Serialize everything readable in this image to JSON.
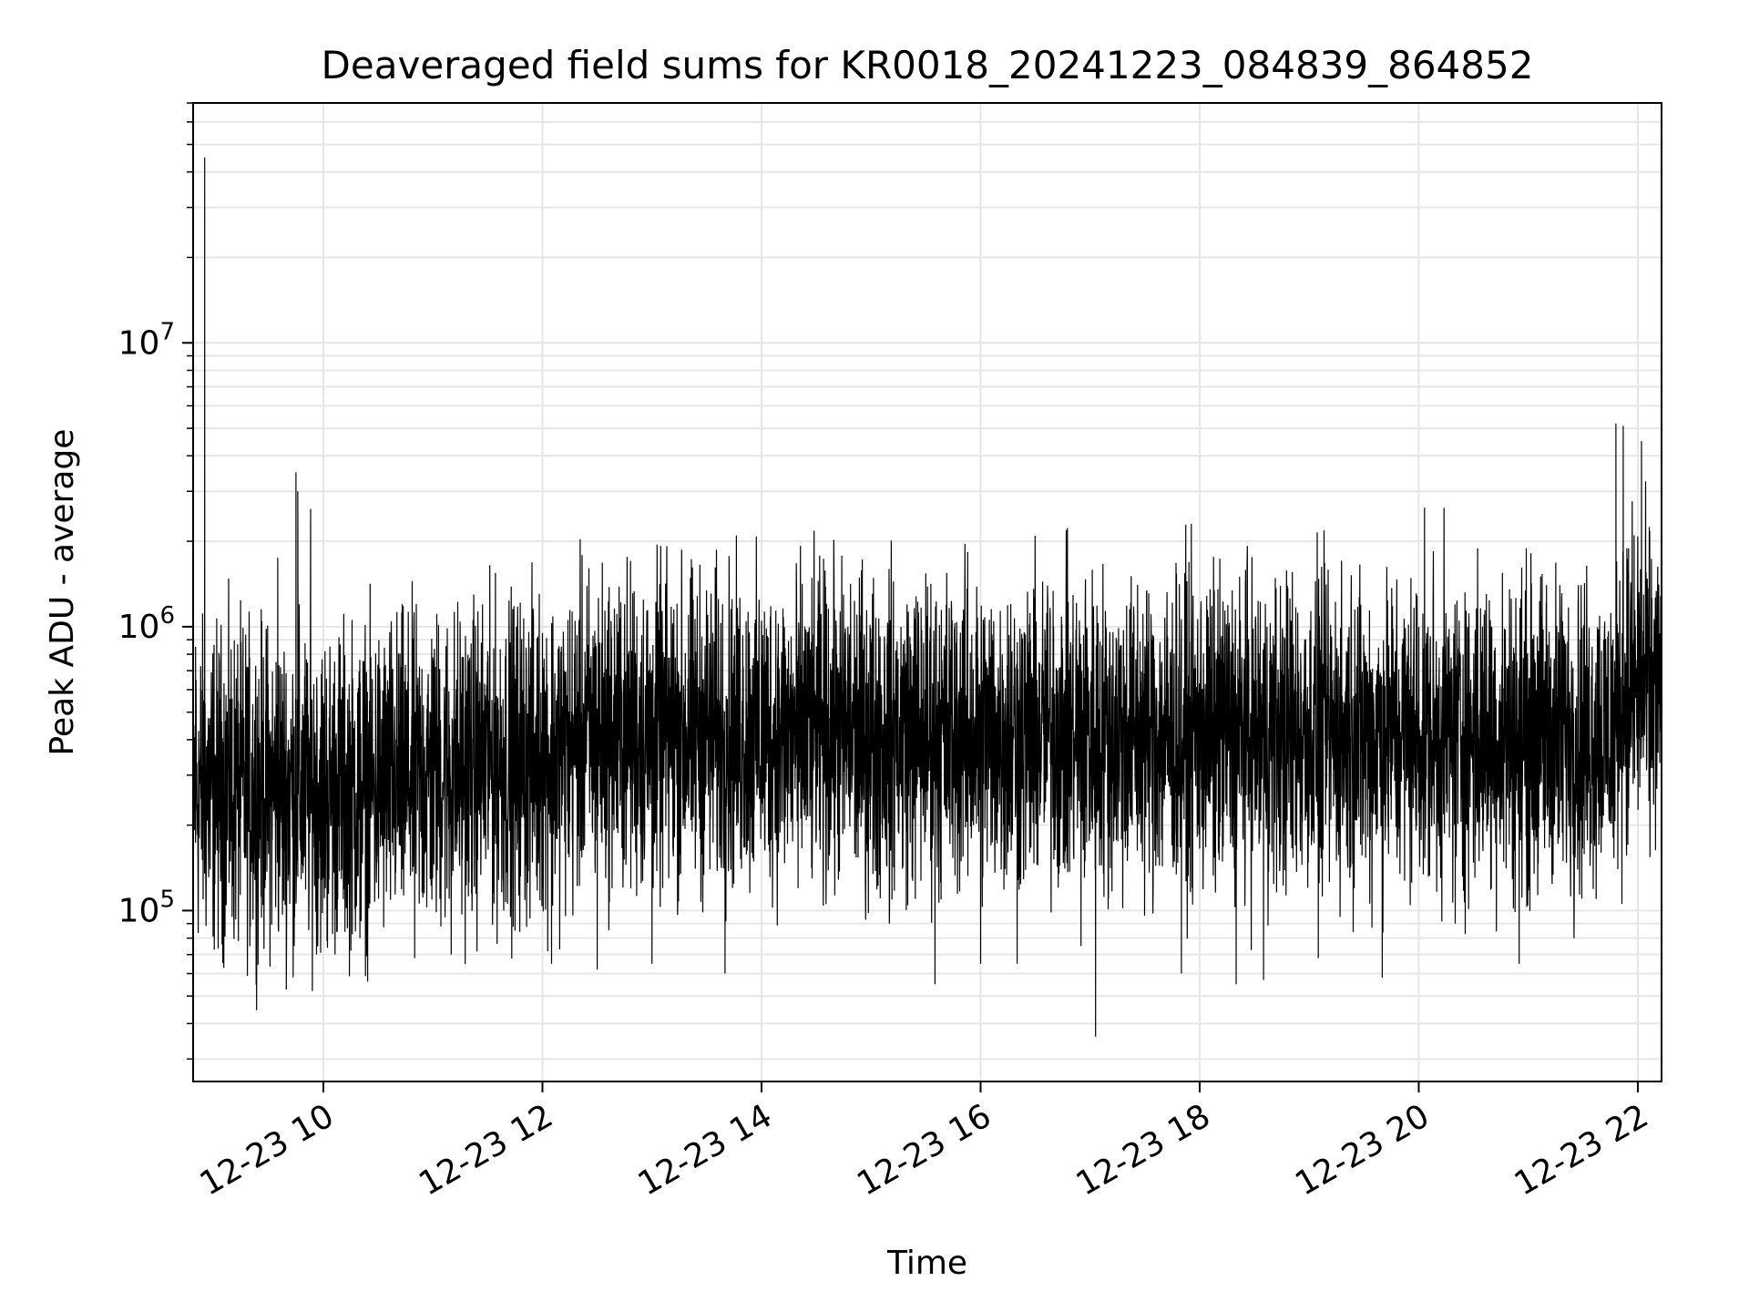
{
  "chart_data": {
    "type": "line",
    "title": "Deaveraged field sums for KR0018_20241223_084839_864852",
    "xlabel": "Time",
    "ylabel": "Peak ADU - average",
    "xscale": "time",
    "yscale": "log",
    "xlim": [
      "2024-12-23 08:48:39",
      "2024-12-23 22:13:00"
    ],
    "ylim": [
      25000,
      70000000
    ],
    "grid": true,
    "legend": "none",
    "xticks": [
      "12-23 10",
      "12-23 12",
      "12-23 14",
      "12-23 16",
      "12-23 18",
      "12-23 20",
      "12-23 22"
    ],
    "xtick_times": [
      "2024-12-23 10:00",
      "2024-12-23 12:00",
      "2024-12-23 14:00",
      "2024-12-23 16:00",
      "2024-12-23 18:00",
      "2024-12-23 20:00",
      "2024-12-23 22:00"
    ],
    "yticks": [
      {
        "base": "10",
        "exp": "5",
        "value": 100000
      },
      {
        "base": "10",
        "exp": "6",
        "value": 1000000
      },
      {
        "base": "10",
        "exp": "7",
        "value": 10000000
      }
    ],
    "series": [
      {
        "color": "#000000",
        "points": [
          [
            "2024-12-23 08:48:39",
            450000
          ],
          [
            "2024-12-23 08:50",
            850000
          ],
          [
            "2024-12-23 08:52",
            180000
          ],
          [
            "2024-12-23 08:54",
            650000
          ],
          [
            "2024-12-23 08:55",
            45000000
          ],
          [
            "2024-12-23 08:56",
            250000
          ],
          [
            "2024-12-23 08:58",
            140000
          ],
          [
            "2024-12-23 09:05",
            300000
          ],
          [
            "2024-12-23 09:10",
            95000
          ],
          [
            "2024-12-23 09:15",
            720000
          ],
          [
            "2024-12-23 09:20",
            88000
          ],
          [
            "2024-12-23 09:25",
            260000
          ],
          [
            "2024-12-23 09:30",
            180000
          ],
          [
            "2024-12-23 09:35",
            1750000
          ],
          [
            "2024-12-23 09:40",
            230000
          ],
          [
            "2024-12-23 09:44",
            75000
          ],
          [
            "2024-12-23 09:45",
            3500000
          ],
          [
            "2024-12-23 09:46",
            3000000
          ],
          [
            "2024-12-23 09:50",
            200000
          ],
          [
            "2024-12-23 09:55",
            420000
          ],
          [
            "2024-12-23 10:00",
            130000
          ],
          [
            "2024-12-23 09:53",
            2600000
          ],
          [
            "2024-12-23 10:02",
            78000
          ],
          [
            "2024-12-23 10:10",
            300000
          ],
          [
            "2024-12-23 10:20",
            80000
          ],
          [
            "2024-12-23 10:35",
            580000
          ],
          [
            "2024-12-23 10:50",
            68000
          ],
          [
            "2024-12-23 11:00",
            780000
          ],
          [
            "2024-12-23 11:10",
            70000
          ],
          [
            "2024-12-23 11:30",
            820000
          ],
          [
            "2024-12-23 11:45",
            85000
          ],
          [
            "2024-12-23 12:00",
            950000
          ],
          [
            "2024-12-23 12:05",
            65000
          ],
          [
            "2024-12-23 12:20",
            1050000
          ],
          [
            "2024-12-23 12:30",
            62000
          ],
          [
            "2024-12-23 12:45",
            1200000
          ],
          [
            "2024-12-23 13:00",
            65000
          ],
          [
            "2024-12-23 13:20",
            1100000
          ],
          [
            "2024-12-23 13:40",
            60000
          ],
          [
            "2024-12-23 14:00",
            1050000
          ],
          [
            "2024-12-23 14:20",
            120000
          ],
          [
            "2024-12-23 14:40",
            1150000
          ],
          [
            "2024-12-23 14:55",
            1250000
          ],
          [
            "2024-12-23 15:10",
            90000
          ],
          [
            "2024-12-23 15:35",
            55000
          ],
          [
            "2024-12-23 15:50",
            1050000
          ],
          [
            "2024-12-23 16:00",
            65000
          ],
          [
            "2024-12-23 16:20",
            65000
          ],
          [
            "2024-12-23 16:40",
            1000000
          ],
          [
            "2024-12-23 16:55",
            75000
          ],
          [
            "2024-12-23 17:03",
            36000
          ],
          [
            "2024-12-23 17:10",
            110000
          ],
          [
            "2024-12-23 17:30",
            850000
          ],
          [
            "2024-12-23 17:50",
            60000
          ],
          [
            "2024-12-23 18:10",
            1250000
          ],
          [
            "2024-12-23 18:20",
            55000
          ],
          [
            "2024-12-23 18:35",
            57000
          ],
          [
            "2024-12-23 18:50",
            1050000
          ],
          [
            "2024-12-23 19:05",
            68000
          ],
          [
            "2024-12-23 19:25",
            1150000
          ],
          [
            "2024-12-23 19:40",
            58000
          ],
          [
            "2024-12-23 20:00",
            1000000
          ],
          [
            "2024-12-23 20:20",
            90000
          ],
          [
            "2024-12-23 20:40",
            1000000
          ],
          [
            "2024-12-23 20:55",
            65000
          ],
          [
            "2024-12-23 21:10",
            1400000
          ],
          [
            "2024-12-23 21:25",
            100000
          ],
          [
            "2024-12-23 21:35",
            850000
          ],
          [
            "2024-12-23 21:48",
            5200000
          ],
          [
            "2024-12-23 21:52",
            5100000
          ],
          [
            "2024-12-23 21:55",
            230000
          ],
          [
            "2024-12-23 21:58",
            2100000
          ],
          [
            "2024-12-23 22:02",
            4500000
          ],
          [
            "2024-12-23 22:05",
            1050000
          ],
          [
            "2024-12-23 22:10",
            320000
          ],
          [
            "2024-12-23 22:13",
            700000
          ]
        ]
      }
    ]
  }
}
